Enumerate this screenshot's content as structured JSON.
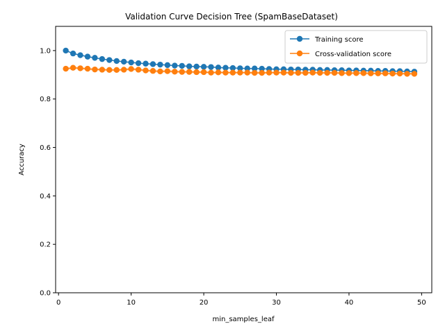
{
  "chart_data": {
    "type": "line",
    "title": "Validation Curve Decision Tree (SpamBaseDataset)",
    "xlabel": "min_samples_leaf",
    "ylabel": "Accuracy",
    "xlim": [
      -0.4,
      51.4
    ],
    "ylim": [
      0.0,
      1.1
    ],
    "xticks": [
      0,
      10,
      20,
      30,
      40,
      50
    ],
    "yticks": [
      0.0,
      0.2,
      0.4,
      0.6,
      0.8,
      1.0
    ],
    "xtick_labels": [
      "0",
      "10",
      "20",
      "30",
      "40",
      "50"
    ],
    "ytick_labels": [
      "0.0",
      "0.2",
      "0.4",
      "0.6",
      "0.8",
      "1.0"
    ],
    "grid": false,
    "legend_position": "top-right",
    "x": [
      1,
      2,
      3,
      4,
      5,
      6,
      7,
      8,
      9,
      10,
      11,
      12,
      13,
      14,
      15,
      16,
      17,
      18,
      19,
      20,
      21,
      22,
      23,
      24,
      25,
      26,
      27,
      28,
      29,
      30,
      31,
      32,
      33,
      34,
      35,
      36,
      37,
      38,
      39,
      40,
      41,
      42,
      43,
      44,
      45,
      46,
      47,
      48,
      49
    ],
    "series": [
      {
        "name": "Training score",
        "color": "#1f77b4",
        "values": [
          1.0,
          0.988,
          0.981,
          0.975,
          0.97,
          0.965,
          0.961,
          0.957,
          0.954,
          0.951,
          0.948,
          0.946,
          0.944,
          0.942,
          0.94,
          0.938,
          0.937,
          0.935,
          0.934,
          0.933,
          0.932,
          0.93,
          0.929,
          0.928,
          0.927,
          0.926,
          0.926,
          0.925,
          0.924,
          0.923,
          0.923,
          0.922,
          0.922,
          0.921,
          0.921,
          0.92,
          0.92,
          0.919,
          0.919,
          0.918,
          0.918,
          0.917,
          0.917,
          0.916,
          0.916,
          0.915,
          0.915,
          0.914,
          0.913
        ]
      },
      {
        "name": "Cross-validation score",
        "color": "#ff7f0e",
        "values": [
          0.925,
          0.929,
          0.927,
          0.925,
          0.922,
          0.921,
          0.92,
          0.92,
          0.921,
          0.924,
          0.921,
          0.918,
          0.916,
          0.914,
          0.915,
          0.913,
          0.912,
          0.912,
          0.911,
          0.911,
          0.909,
          0.91,
          0.909,
          0.909,
          0.909,
          0.909,
          0.908,
          0.908,
          0.909,
          0.909,
          0.909,
          0.908,
          0.908,
          0.908,
          0.909,
          0.908,
          0.908,
          0.908,
          0.907,
          0.907,
          0.907,
          0.907,
          0.906,
          0.906,
          0.906,
          0.905,
          0.905,
          0.904,
          0.904
        ]
      }
    ]
  }
}
